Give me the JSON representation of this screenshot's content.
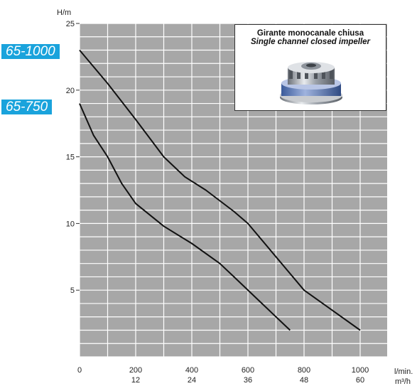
{
  "chart_data": {
    "type": "line",
    "title": "",
    "ylabel": "H/m",
    "xlabel_primary": "l/min.",
    "xlabel_secondary": "m³/h",
    "x_unit": "l/min",
    "ylim": [
      0,
      25
    ],
    "xlim": [
      0,
      1000
    ],
    "y_ticks": [
      5,
      10,
      15,
      20,
      25
    ],
    "y_tick_labels": [
      "5",
      "10",
      "15",
      "20",
      "25"
    ],
    "x_ticks_primary": [
      "0",
      "200",
      "400",
      "600",
      "800",
      "1000"
    ],
    "x_ticks_secondary": [
      "",
      "12",
      "24",
      "36",
      "48",
      "60"
    ],
    "grid": true,
    "background": "#a7a7a7",
    "grid_color": "#ffffff",
    "series": [
      {
        "name": "65-1000",
        "x": [
          0,
          100,
          200,
          300,
          375,
          450,
          550,
          600,
          700,
          800,
          900,
          1000
        ],
        "y": [
          23,
          20.5,
          17.8,
          15,
          13.5,
          12.5,
          10.9,
          10,
          7.5,
          5,
          3.5,
          2
        ]
      },
      {
        "name": "65-750",
        "x": [
          0,
          50,
          100,
          150,
          200,
          300,
          400,
          500,
          550,
          650,
          750
        ],
        "y": [
          19,
          16.6,
          15,
          13,
          11.5,
          9.8,
          8.5,
          7,
          6,
          4,
          2
        ]
      }
    ]
  },
  "labels": {
    "series_1": "65-1000",
    "series_2": "65-750"
  },
  "inset": {
    "title": "Girante monocanale chiusa",
    "subtitle": "Single channel closed impeller",
    "icon": "closed-impeller-icon"
  },
  "colors": {
    "label_bg": "#1aa3dc",
    "curve": "#111111"
  }
}
